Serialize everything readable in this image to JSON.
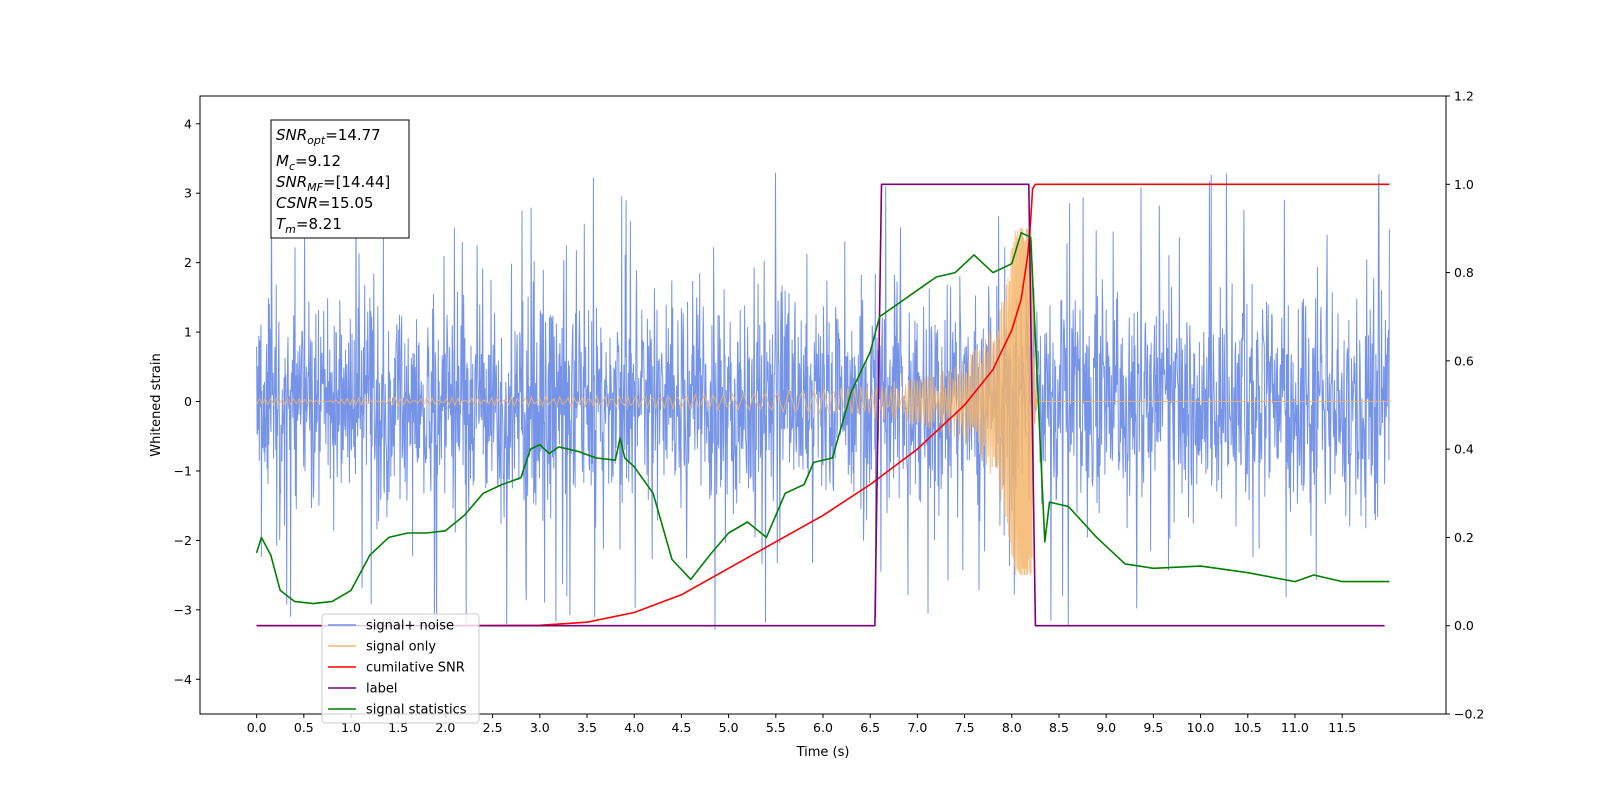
{
  "chart_data": {
    "type": "line",
    "title": "",
    "xlabel": "Time (s)",
    "ylabel": "Whitened strain",
    "xlim": [
      -0.6,
      12.6
    ],
    "ylim": [
      -4.5,
      4.4
    ],
    "ylim_right": [
      -0.2,
      1.2
    ],
    "grid": false,
    "legend_position": "lower-left",
    "x_ticks": [
      "0.0",
      "0.5",
      "1.0",
      "1.5",
      "2.0",
      "2.5",
      "3.0",
      "3.5",
      "4.0",
      "4.5",
      "5.0",
      "5.5",
      "6.0",
      "6.5",
      "7.0",
      "7.5",
      "8.0",
      "8.5",
      "9.0",
      "9.5",
      "10.0",
      "10.5",
      "11.0",
      "11.5"
    ],
    "y_ticks_left": [
      "4",
      "3",
      "2",
      "1",
      "0",
      "−1",
      "−2",
      "−3",
      "−4"
    ],
    "y_ticks_right": [
      "1.2",
      "1.0",
      "0.8",
      "0.6",
      "0.4",
      "0.2",
      "0.0",
      "−0.2"
    ],
    "annotation": {
      "snr_opt": "=14.77",
      "mc": "=9.12",
      "snr_mf": "=[14.44]",
      "csnr": "=15.05",
      "tm": "=8.21"
    },
    "series": [
      {
        "name": "signal+ noise",
        "color": "#6f8ee6",
        "axis": "left",
        "kind": "noise",
        "x_range": [
          0.0,
          12.0
        ],
        "amplitude_core": 1.3,
        "spike_range": [
          -4.1,
          3.6
        ]
      },
      {
        "name": "signal only",
        "color": "#f5b56b",
        "axis": "left",
        "kind": "chirp",
        "x_range": [
          0.0,
          12.0
        ],
        "merger_time": 8.22,
        "peak_amplitude": 2.5
      },
      {
        "name": "cumilative SNR",
        "color": "#ff0000",
        "axis": "right",
        "points": [
          [
            0.0,
            0.0
          ],
          [
            2.0,
            0.0
          ],
          [
            3.0,
            0.001
          ],
          [
            3.5,
            0.008
          ],
          [
            4.0,
            0.03
          ],
          [
            4.5,
            0.07
          ],
          [
            5.0,
            0.13
          ],
          [
            5.5,
            0.19
          ],
          [
            6.0,
            0.25
          ],
          [
            6.5,
            0.32
          ],
          [
            7.0,
            0.4
          ],
          [
            7.5,
            0.5
          ],
          [
            7.8,
            0.58
          ],
          [
            8.0,
            0.67
          ],
          [
            8.1,
            0.74
          ],
          [
            8.17,
            0.84
          ],
          [
            8.2,
            0.92
          ],
          [
            8.22,
            0.99
          ],
          [
            8.25,
            1.0
          ],
          [
            12.0,
            1.0
          ]
        ]
      },
      {
        "name": "label",
        "color": "#7a007a",
        "axis": "right",
        "points": [
          [
            0.0,
            0.0
          ],
          [
            6.55,
            0.0
          ],
          [
            6.62,
            1.0
          ],
          [
            8.18,
            1.0
          ],
          [
            8.25,
            0.0
          ],
          [
            11.95,
            0.0
          ]
        ]
      },
      {
        "name": "signal statistics",
        "color": "#008000",
        "axis": "right",
        "points": [
          [
            0.0,
            0.165
          ],
          [
            0.05,
            0.2
          ],
          [
            0.15,
            0.16
          ],
          [
            0.25,
            0.08
          ],
          [
            0.4,
            0.055
          ],
          [
            0.6,
            0.05
          ],
          [
            0.8,
            0.055
          ],
          [
            1.0,
            0.08
          ],
          [
            1.2,
            0.16
          ],
          [
            1.4,
            0.2
          ],
          [
            1.6,
            0.21
          ],
          [
            1.8,
            0.21
          ],
          [
            2.0,
            0.215
          ],
          [
            2.2,
            0.25
          ],
          [
            2.4,
            0.3
          ],
          [
            2.6,
            0.32
          ],
          [
            2.8,
            0.335
          ],
          [
            2.9,
            0.4
          ],
          [
            3.0,
            0.41
          ],
          [
            3.1,
            0.39
          ],
          [
            3.2,
            0.405
          ],
          [
            3.4,
            0.395
          ],
          [
            3.6,
            0.38
          ],
          [
            3.8,
            0.375
          ],
          [
            3.85,
            0.425
          ],
          [
            3.9,
            0.38
          ],
          [
            4.0,
            0.36
          ],
          [
            4.2,
            0.3
          ],
          [
            4.4,
            0.15
          ],
          [
            4.6,
            0.105
          ],
          [
            4.8,
            0.16
          ],
          [
            5.0,
            0.21
          ],
          [
            5.2,
            0.235
          ],
          [
            5.4,
            0.2
          ],
          [
            5.6,
            0.3
          ],
          [
            5.8,
            0.32
          ],
          [
            5.9,
            0.37
          ],
          [
            6.1,
            0.38
          ],
          [
            6.3,
            0.53
          ],
          [
            6.5,
            0.62
          ],
          [
            6.6,
            0.7
          ],
          [
            6.8,
            0.73
          ],
          [
            7.0,
            0.76
          ],
          [
            7.2,
            0.79
          ],
          [
            7.4,
            0.8
          ],
          [
            7.6,
            0.84
          ],
          [
            7.8,
            0.8
          ],
          [
            8.0,
            0.82
          ],
          [
            8.1,
            0.89
          ],
          [
            8.2,
            0.88
          ],
          [
            8.35,
            0.19
          ],
          [
            8.4,
            0.28
          ],
          [
            8.6,
            0.27
          ],
          [
            8.9,
            0.2
          ],
          [
            9.2,
            0.14
          ],
          [
            9.5,
            0.13
          ],
          [
            10.0,
            0.135
          ],
          [
            10.5,
            0.12
          ],
          [
            11.0,
            0.1
          ],
          [
            11.2,
            0.115
          ],
          [
            11.5,
            0.1
          ],
          [
            12.0,
            0.1
          ]
        ]
      }
    ]
  }
}
